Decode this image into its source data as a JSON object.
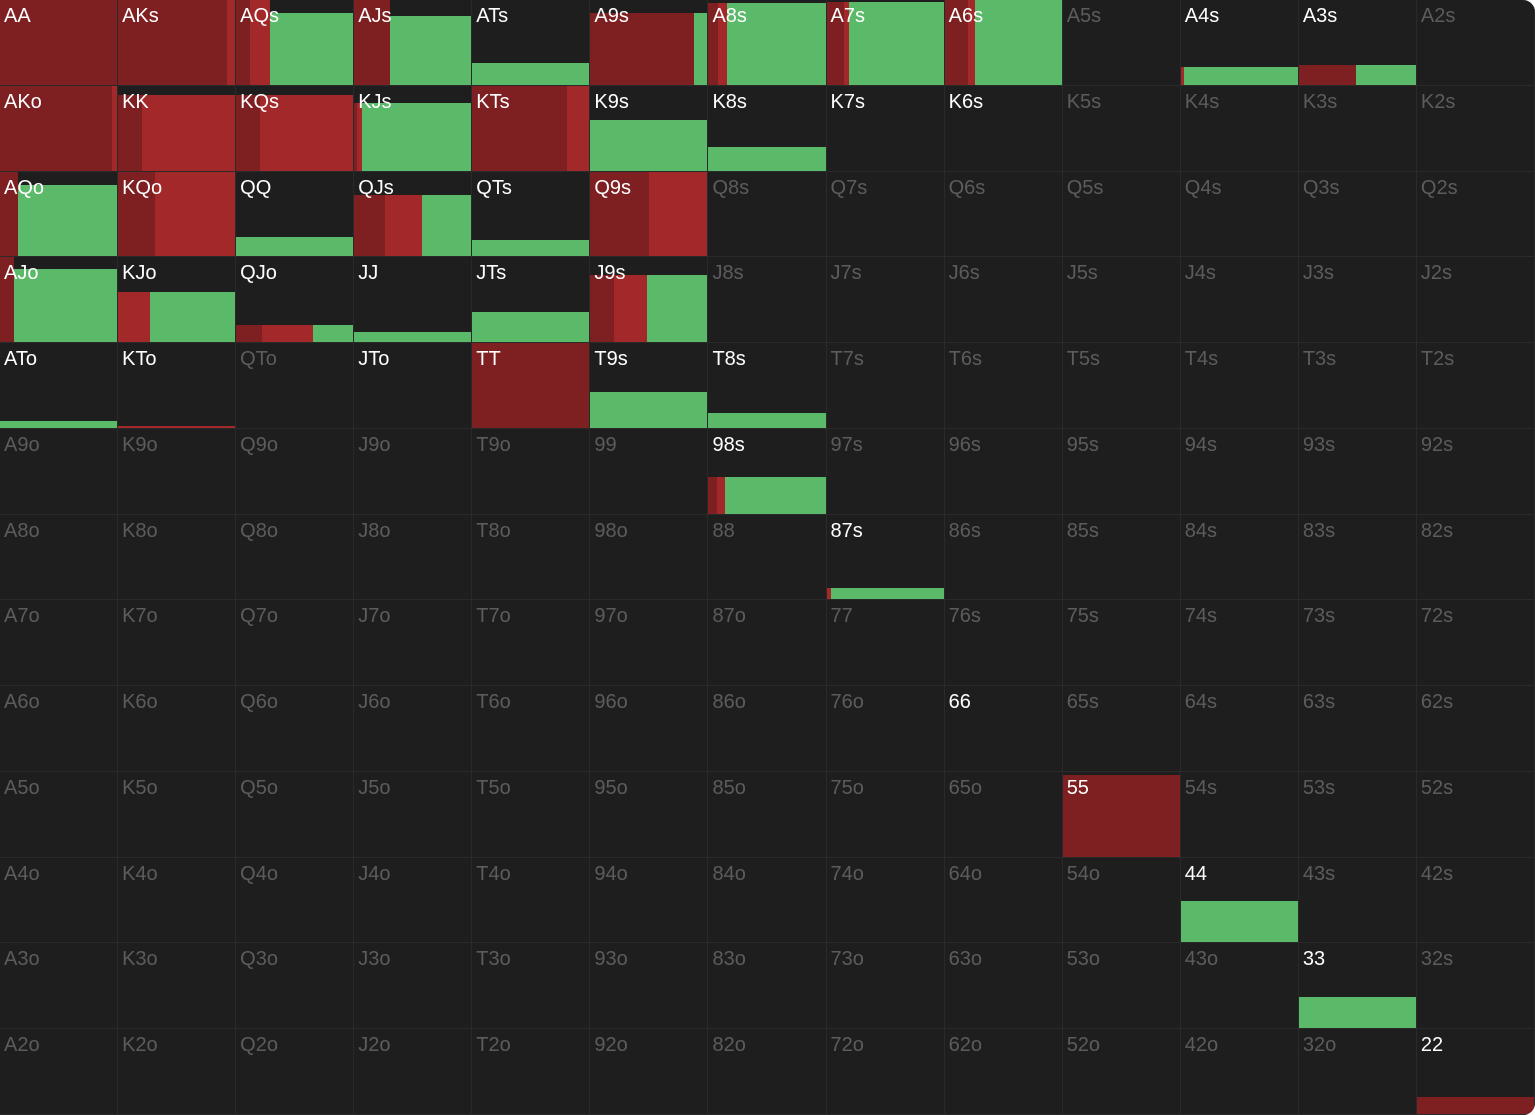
{
  "action_colors": [
    "#7e1f22",
    "#a3282a",
    "#5bb96a"
  ],
  "grid": [
    [
      {
        "label": "AA",
        "active": true,
        "widths": [
          100,
          0,
          0
        ],
        "heights": [
          100,
          0,
          0
        ]
      },
      {
        "label": "AKs",
        "active": true,
        "widths": [
          92,
          8,
          0
        ],
        "heights": [
          100,
          100,
          0
        ]
      },
      {
        "label": "AQs",
        "active": true,
        "widths": [
          12,
          17,
          71
        ],
        "heights": [
          100,
          100,
          84
        ]
      },
      {
        "label": "AJs",
        "active": true,
        "widths": [
          30,
          0,
          70
        ],
        "heights": [
          100,
          0,
          80
        ]
      },
      {
        "label": "ATs",
        "active": true,
        "widths": [
          0,
          0,
          100
        ],
        "heights": [
          0,
          0,
          25
        ]
      },
      {
        "label": "A9s",
        "active": true,
        "widths": [
          88,
          0,
          12
        ],
        "heights": [
          84,
          0,
          84
        ]
      },
      {
        "label": "A8s",
        "active": true,
        "widths": [
          8,
          8,
          84
        ],
        "heights": [
          95,
          95,
          95
        ]
      },
      {
        "label": "A7s",
        "active": true,
        "widths": [
          15,
          4,
          81
        ],
        "heights": [
          97,
          97,
          97
        ]
      },
      {
        "label": "A6s",
        "active": true,
        "widths": [
          20,
          6,
          74
        ],
        "heights": [
          100,
          100,
          100
        ]
      },
      {
        "label": "A5s",
        "active": false
      },
      {
        "label": "A4s",
        "active": true,
        "widths": [
          0,
          3,
          97
        ],
        "heights": [
          0,
          21,
          21
        ]
      },
      {
        "label": "A3s",
        "active": true,
        "widths": [
          48,
          0,
          52
        ],
        "heights": [
          23,
          0,
          23
        ]
      },
      {
        "label": "A2s",
        "active": false
      }
    ],
    [
      {
        "label": "AKo",
        "active": true,
        "widths": [
          95,
          5,
          0
        ],
        "heights": [
          100,
          100,
          0
        ]
      },
      {
        "label": "KK",
        "active": true,
        "widths": [
          20,
          80,
          0
        ],
        "heights": [
          88,
          88,
          0
        ]
      },
      {
        "label": "KQs",
        "active": true,
        "widths": [
          20,
          80,
          0
        ],
        "heights": [
          88,
          88,
          0
        ]
      },
      {
        "label": "KJs",
        "active": true,
        "widths": [
          2,
          5,
          93
        ],
        "heights": [
          79,
          79,
          79
        ]
      },
      {
        "label": "KTs",
        "active": true,
        "widths": [
          80,
          20,
          0
        ],
        "heights": [
          100,
          100,
          0
        ]
      },
      {
        "label": "K9s",
        "active": true,
        "widths": [
          0,
          0,
          100
        ],
        "heights": [
          0,
          0,
          59
        ]
      },
      {
        "label": "K8s",
        "active": true,
        "widths": [
          0,
          0,
          100
        ],
        "heights": [
          0,
          0,
          27
        ]
      },
      {
        "label": "K7s",
        "active": true
      },
      {
        "label": "K6s",
        "active": true
      },
      {
        "label": "K5s",
        "active": false
      },
      {
        "label": "K4s",
        "active": false
      },
      {
        "label": "K3s",
        "active": false
      },
      {
        "label": "K2s",
        "active": false
      }
    ],
    [
      {
        "label": "AQo",
        "active": true,
        "widths": [
          15,
          0,
          85
        ],
        "heights": [
          100,
          0,
          83
        ]
      },
      {
        "label": "KQo",
        "active": true,
        "widths": [
          31,
          69,
          0
        ],
        "heights": [
          100,
          100,
          0
        ]
      },
      {
        "label": "QQ",
        "active": true,
        "widths": [
          0,
          0,
          100
        ],
        "heights": [
          0,
          0,
          22
        ]
      },
      {
        "label": "QJs",
        "active": true,
        "widths": [
          26,
          31,
          43
        ],
        "heights": [
          71,
          71,
          71
        ]
      },
      {
        "label": "QTs",
        "active": true,
        "widths": [
          0,
          0,
          100
        ],
        "heights": [
          0,
          0,
          19
        ]
      },
      {
        "label": "Q9s",
        "active": true,
        "widths": [
          50,
          50,
          0
        ],
        "heights": [
          100,
          100,
          0
        ]
      },
      {
        "label": "Q8s",
        "active": false
      },
      {
        "label": "Q7s",
        "active": false
      },
      {
        "label": "Q6s",
        "active": false
      },
      {
        "label": "Q5s",
        "active": false
      },
      {
        "label": "Q4s",
        "active": false
      },
      {
        "label": "Q3s",
        "active": false
      },
      {
        "label": "Q2s",
        "active": false
      }
    ],
    [
      {
        "label": "AJo",
        "active": true,
        "widths": [
          12,
          0,
          88
        ],
        "heights": [
          100,
          0,
          85
        ]
      },
      {
        "label": "KJo",
        "active": true,
        "widths": [
          0,
          27,
          73
        ],
        "heights": [
          0,
          58,
          58
        ]
      },
      {
        "label": "QJo",
        "active": true,
        "widths": [
          22,
          43,
          35
        ],
        "heights": [
          20,
          20,
          20
        ]
      },
      {
        "label": "JJ",
        "active": true,
        "widths": [
          0,
          0,
          100
        ],
        "heights": [
          0,
          0,
          12
        ]
      },
      {
        "label": "JTs",
        "active": true,
        "widths": [
          0,
          0,
          100
        ],
        "heights": [
          0,
          0,
          35
        ]
      },
      {
        "label": "J9s",
        "active": true,
        "widths": [
          20,
          28,
          52
        ],
        "heights": [
          78,
          78,
          78
        ]
      },
      {
        "label": "J8s",
        "active": false
      },
      {
        "label": "J7s",
        "active": false
      },
      {
        "label": "J6s",
        "active": false
      },
      {
        "label": "J5s",
        "active": false
      },
      {
        "label": "J4s",
        "active": false
      },
      {
        "label": "J3s",
        "active": false
      },
      {
        "label": "J2s",
        "active": false
      }
    ],
    [
      {
        "label": "ATo",
        "active": true,
        "widths": [
          0,
          0,
          100
        ],
        "heights": [
          0,
          0,
          8
        ]
      },
      {
        "label": "KTo",
        "active": true,
        "widths": [
          0,
          100,
          0
        ],
        "heights": [
          0,
          2,
          0
        ]
      },
      {
        "label": "QTo",
        "active": false
      },
      {
        "label": "JTo",
        "active": true
      },
      {
        "label": "TT",
        "active": true,
        "widths": [
          100,
          0,
          0
        ],
        "heights": [
          100,
          0,
          0
        ]
      },
      {
        "label": "T9s",
        "active": true,
        "widths": [
          0,
          0,
          100
        ],
        "heights": [
          0,
          0,
          42
        ]
      },
      {
        "label": "T8s",
        "active": true,
        "widths": [
          0,
          0,
          100
        ],
        "heights": [
          0,
          0,
          17
        ]
      },
      {
        "label": "T7s",
        "active": false
      },
      {
        "label": "T6s",
        "active": false
      },
      {
        "label": "T5s",
        "active": false
      },
      {
        "label": "T4s",
        "active": false
      },
      {
        "label": "T3s",
        "active": false
      },
      {
        "label": "T2s",
        "active": false
      }
    ],
    [
      {
        "label": "A9o",
        "active": false
      },
      {
        "label": "K9o",
        "active": false
      },
      {
        "label": "Q9o",
        "active": false
      },
      {
        "label": "J9o",
        "active": false
      },
      {
        "label": "T9o",
        "active": false
      },
      {
        "label": "99",
        "active": false
      },
      {
        "label": "98s",
        "active": true,
        "widths": [
          7,
          7,
          86
        ],
        "heights": [
          43,
          43,
          43
        ]
      },
      {
        "label": "97s",
        "active": false
      },
      {
        "label": "96s",
        "active": false
      },
      {
        "label": "95s",
        "active": false
      },
      {
        "label": "94s",
        "active": false
      },
      {
        "label": "93s",
        "active": false
      },
      {
        "label": "92s",
        "active": false
      }
    ],
    [
      {
        "label": "A8o",
        "active": false
      },
      {
        "label": "K8o",
        "active": false
      },
      {
        "label": "Q8o",
        "active": false
      },
      {
        "label": "J8o",
        "active": false
      },
      {
        "label": "T8o",
        "active": false
      },
      {
        "label": "98o",
        "active": false
      },
      {
        "label": "88",
        "active": false
      },
      {
        "label": "87s",
        "active": true,
        "widths": [
          0,
          4,
          96
        ],
        "heights": [
          0,
          13,
          13
        ]
      },
      {
        "label": "86s",
        "active": false
      },
      {
        "label": "85s",
        "active": false
      },
      {
        "label": "84s",
        "active": false
      },
      {
        "label": "83s",
        "active": false
      },
      {
        "label": "82s",
        "active": false
      }
    ],
    [
      {
        "label": "A7o",
        "active": false
      },
      {
        "label": "K7o",
        "active": false
      },
      {
        "label": "Q7o",
        "active": false
      },
      {
        "label": "J7o",
        "active": false
      },
      {
        "label": "T7o",
        "active": false
      },
      {
        "label": "97o",
        "active": false
      },
      {
        "label": "87o",
        "active": false
      },
      {
        "label": "77",
        "active": false
      },
      {
        "label": "76s",
        "active": false
      },
      {
        "label": "75s",
        "active": false
      },
      {
        "label": "74s",
        "active": false
      },
      {
        "label": "73s",
        "active": false
      },
      {
        "label": "72s",
        "active": false
      }
    ],
    [
      {
        "label": "A6o",
        "active": false
      },
      {
        "label": "K6o",
        "active": false
      },
      {
        "label": "Q6o",
        "active": false
      },
      {
        "label": "J6o",
        "active": false
      },
      {
        "label": "T6o",
        "active": false
      },
      {
        "label": "96o",
        "active": false
      },
      {
        "label": "86o",
        "active": false
      },
      {
        "label": "76o",
        "active": false
      },
      {
        "label": "66",
        "active": true
      },
      {
        "label": "65s",
        "active": false
      },
      {
        "label": "64s",
        "active": false
      },
      {
        "label": "63s",
        "active": false
      },
      {
        "label": "62s",
        "active": false
      }
    ],
    [
      {
        "label": "A5o",
        "active": false
      },
      {
        "label": "K5o",
        "active": false
      },
      {
        "label": "Q5o",
        "active": false
      },
      {
        "label": "J5o",
        "active": false
      },
      {
        "label": "T5o",
        "active": false
      },
      {
        "label": "95o",
        "active": false
      },
      {
        "label": "85o",
        "active": false
      },
      {
        "label": "75o",
        "active": false
      },
      {
        "label": "65o",
        "active": false
      },
      {
        "label": "55",
        "active": true,
        "widths": [
          100,
          0,
          0
        ],
        "heights": [
          95,
          0,
          0
        ]
      },
      {
        "label": "54s",
        "active": false
      },
      {
        "label": "53s",
        "active": false
      },
      {
        "label": "52s",
        "active": false
      }
    ],
    [
      {
        "label": "A4o",
        "active": false
      },
      {
        "label": "K4o",
        "active": false
      },
      {
        "label": "Q4o",
        "active": false
      },
      {
        "label": "J4o",
        "active": false
      },
      {
        "label": "T4o",
        "active": false
      },
      {
        "label": "94o",
        "active": false
      },
      {
        "label": "84o",
        "active": false
      },
      {
        "label": "74o",
        "active": false
      },
      {
        "label": "64o",
        "active": false
      },
      {
        "label": "54o",
        "active": false
      },
      {
        "label": "44",
        "active": true,
        "widths": [
          0,
          0,
          100
        ],
        "heights": [
          0,
          0,
          48
        ]
      },
      {
        "label": "43s",
        "active": false
      },
      {
        "label": "42s",
        "active": false
      }
    ],
    [
      {
        "label": "A3o",
        "active": false
      },
      {
        "label": "K3o",
        "active": false
      },
      {
        "label": "Q3o",
        "active": false
      },
      {
        "label": "J3o",
        "active": false
      },
      {
        "label": "T3o",
        "active": false
      },
      {
        "label": "93o",
        "active": false
      },
      {
        "label": "83o",
        "active": false
      },
      {
        "label": "73o",
        "active": false
      },
      {
        "label": "63o",
        "active": false
      },
      {
        "label": "53o",
        "active": false
      },
      {
        "label": "43o",
        "active": false
      },
      {
        "label": "33",
        "active": true,
        "widths": [
          0,
          0,
          100
        ],
        "heights": [
          0,
          0,
          36
        ]
      },
      {
        "label": "32s",
        "active": false
      }
    ],
    [
      {
        "label": "A2o",
        "active": false
      },
      {
        "label": "K2o",
        "active": false
      },
      {
        "label": "Q2o",
        "active": false
      },
      {
        "label": "J2o",
        "active": false
      },
      {
        "label": "T2o",
        "active": false
      },
      {
        "label": "92o",
        "active": false
      },
      {
        "label": "82o",
        "active": false
      },
      {
        "label": "72o",
        "active": false
      },
      {
        "label": "62o",
        "active": false
      },
      {
        "label": "52o",
        "active": false
      },
      {
        "label": "42o",
        "active": false
      },
      {
        "label": "32o",
        "active": false
      },
      {
        "label": "22",
        "active": true,
        "widths": [
          100,
          0,
          0
        ],
        "heights": [
          20,
          0,
          0
        ]
      }
    ]
  ]
}
